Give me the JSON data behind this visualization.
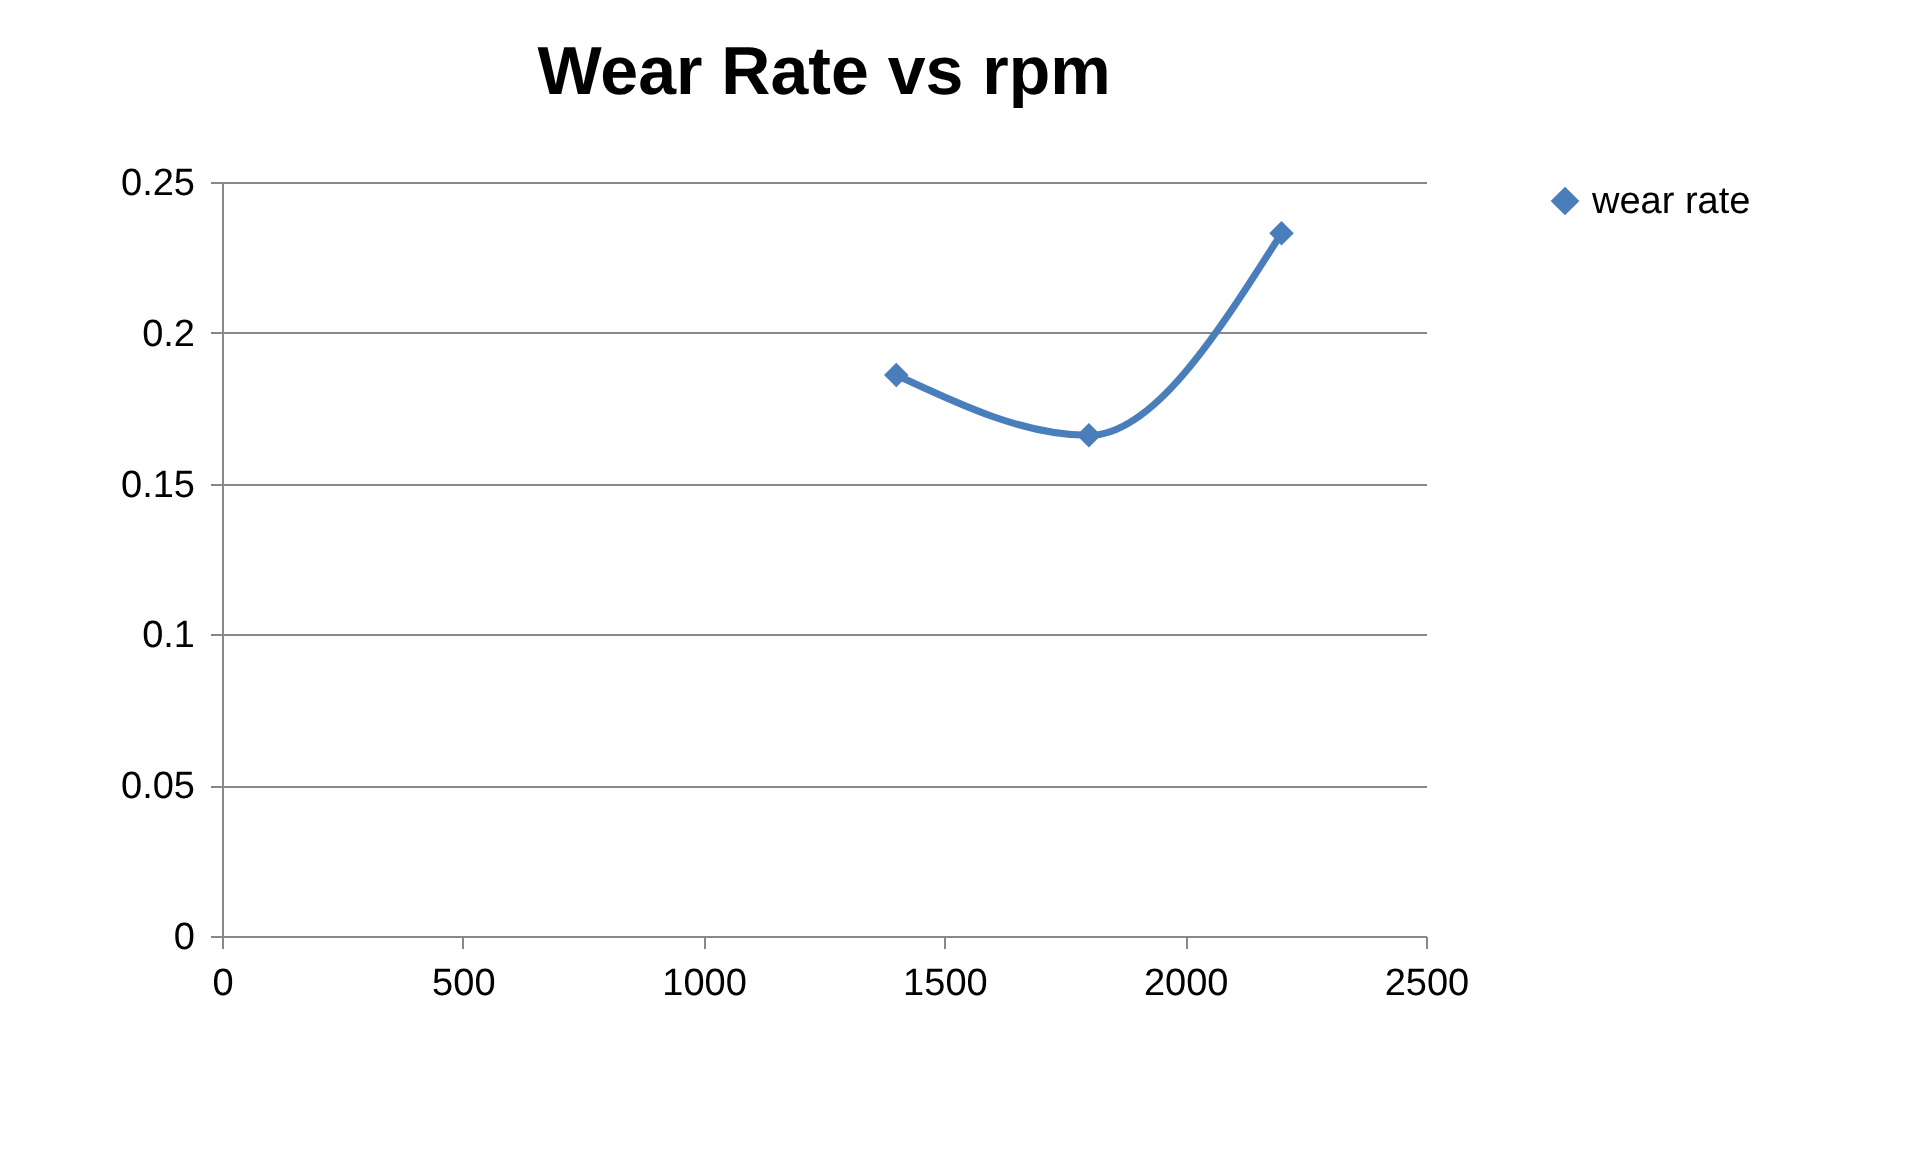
{
  "chart_data": {
    "type": "line",
    "title": "Wear Rate vs rpm",
    "x": [
      1400,
      1800,
      2200
    ],
    "series": [
      {
        "name": "wear rate",
        "color": "#4a7ebb",
        "values": [
          0.186,
          0.166,
          0.233
        ]
      }
    ],
    "xlim": [
      0,
      2500
    ],
    "xticks": [
      0,
      500,
      1000,
      1500,
      2000,
      2500
    ],
    "ylim": [
      0,
      0.25
    ],
    "yticks": [
      0,
      0.05,
      0.1,
      0.15,
      0.2,
      0.25
    ],
    "grid": "y",
    "legend": "right",
    "marker": "diamond",
    "line_style": "solid"
  }
}
